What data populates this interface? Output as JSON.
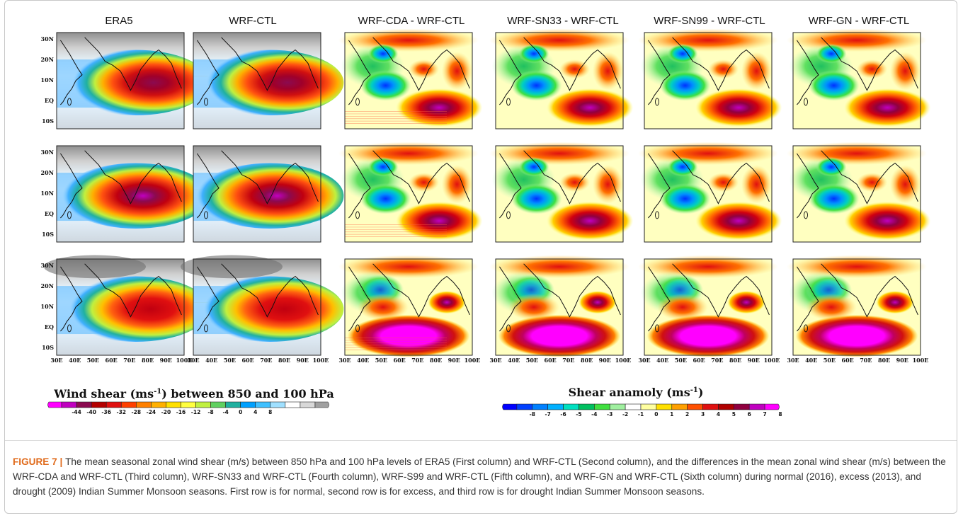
{
  "figure": {
    "column_titles": [
      "ERA5",
      "WRF-CTL",
      "WRF-CDA - WRF-CTL",
      "WRF-SN33 - WRF-CTL",
      "WRF-SN99 - WRF-CTL",
      "WRF-GN - WRF-CTL"
    ],
    "lat_labels": [
      "30N",
      "20N",
      "10N",
      "EQ",
      "10S"
    ],
    "lon_labels": [
      "30E",
      "40E",
      "50E",
      "60E",
      "70E",
      "80E",
      "90E",
      "100E"
    ],
    "rows": 3,
    "colorbar_left": {
      "title_main": "Wind shear (ms",
      "title_sup": "-1",
      "title_tail": ") between 850 and 100 hPa",
      "ticks": [
        "-44",
        "-40",
        "-36",
        "-32",
        "-28",
        "-24",
        "-20",
        "-16",
        "-12",
        "-8",
        "-4",
        "0",
        "4",
        "8"
      ],
      "colors": [
        "#ff00ff",
        "#c000c0",
        "#8b0a50",
        "#b40000",
        "#e01010",
        "#ff4000",
        "#ff8000",
        "#ffb000",
        "#ffe000",
        "#ffff40",
        "#c0f040",
        "#60d060",
        "#20b0a0",
        "#00a0ff",
        "#40c0ff",
        "#a0e0ff",
        "#ffffff",
        "#d8d8d8",
        "#a0a0a0"
      ]
    },
    "colorbar_right": {
      "title_main": "Shear anamoly (ms",
      "title_sup": "-1",
      "title_tail": ")",
      "ticks": [
        "-8",
        "-7",
        "-6",
        "-5",
        "-4",
        "-3",
        "-2",
        "-1",
        "0",
        "1",
        "2",
        "3",
        "4",
        "5",
        "6",
        "7",
        "8"
      ],
      "colors": [
        "#0000ff",
        "#0040ff",
        "#0080ff",
        "#00b0ff",
        "#00e0c0",
        "#00c060",
        "#40e040",
        "#a0f0a0",
        "#ffffff",
        "#ffffa0",
        "#ffe000",
        "#ffa000",
        "#ff5000",
        "#e01010",
        "#b00000",
        "#900040",
        "#c000c0",
        "#ff00ff"
      ]
    },
    "palettes": {
      "wind": [
        "#ff00ff",
        "#c000c0",
        "#8b0a50",
        "#b40000",
        "#e01010",
        "#ff4000",
        "#ff8000",
        "#ffb000",
        "#ffe000",
        "#ffff40",
        "#c0f040",
        "#60d060",
        "#20b0a0",
        "#00a0ff",
        "#40c0ff",
        "#a0e0ff",
        "#ffffff",
        "#d8d8d8",
        "#a0a0a0"
      ],
      "anomaly": [
        "#0000ff",
        "#0040ff",
        "#0080ff",
        "#00b0ff",
        "#00e0c0",
        "#00c060",
        "#40e040",
        "#a0f0a0",
        "#ffffff",
        "#ffffa0",
        "#ffe000",
        "#ffa000",
        "#ff5000",
        "#e01010",
        "#b00000",
        "#900040",
        "#c000c0",
        "#ff00ff"
      ]
    }
  },
  "caption": {
    "lead": "FIGURE 7",
    "separator": " | ",
    "text": "The mean seasonal zonal wind shear (m/s) between 850 hPa and 100 hPa levels of ERA5 (First column) and WRF-CTL (Second column), and the differences in the mean zonal wind shear (m/s) between the WRF-CDA and WRF-CTL (Third column), WRF-SN33 and WRF-CTL (Fourth column), WRF-S99 and WRF-CTL (Fifth column), and WRF-GN and WRF-CTL (Sixth column) during normal (2016), excess (2013), and drought (2009) Indian Summer Monsoon seasons. First row is for normal, second row is for excess, and third row is for drought Indian Summer Monsoon seasons."
  }
}
